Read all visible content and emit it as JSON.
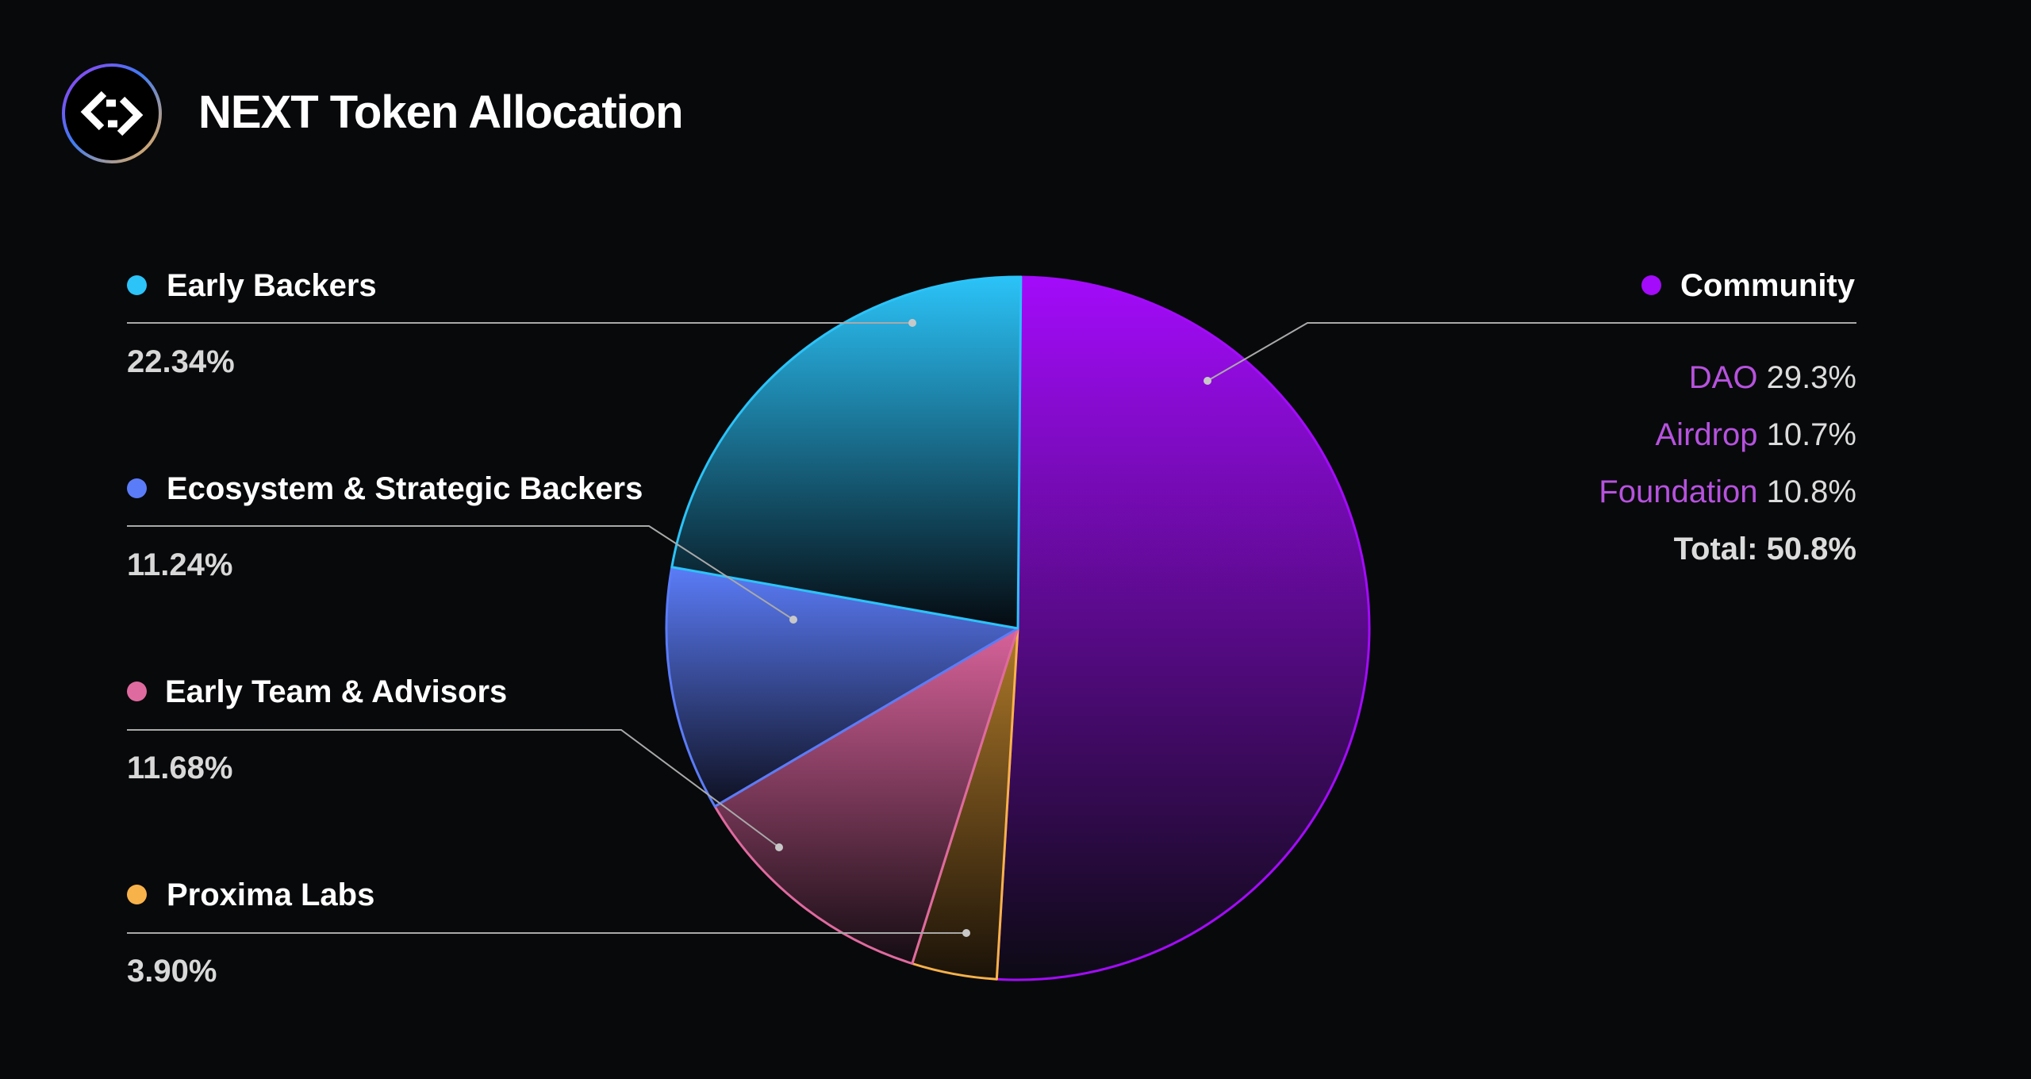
{
  "header": {
    "title": "NEXT Token Allocation"
  },
  "colors": {
    "background": "#08090b",
    "early_backers": "#2bc3f8",
    "ecosystem": "#5b7cf8",
    "team": "#df6a9f",
    "proxima": "#f8b24a",
    "community": "#a30bfa",
    "subitem": "#b652de"
  },
  "chart_data": {
    "type": "pie",
    "title": "NEXT Token Allocation",
    "slices": [
      {
        "label": "Community",
        "value": 50.8,
        "color": "#a30bfa"
      },
      {
        "label": "Proxima Labs",
        "value": 3.9,
        "display": "3.90%",
        "color": "#f8b24a"
      },
      {
        "label": "Early Team & Advisors",
        "value": 11.68,
        "display": "11.68%",
        "color": "#df6a9f"
      },
      {
        "label": "Ecosystem & Strategic Backers",
        "value": 11.24,
        "display": "11.24%",
        "color": "#5b7cf8"
      },
      {
        "label": "Early Backers",
        "value": 22.34,
        "display": "22.34%",
        "color": "#2bc3f8"
      }
    ],
    "community_breakdown": [
      {
        "name": "DAO",
        "value": "29.3%"
      },
      {
        "name": "Airdrop",
        "value": "10.7%"
      },
      {
        "name": "Foundation",
        "value": "10.8%"
      }
    ],
    "community_total": "Total: 50.8%"
  },
  "legend": {
    "early_backers": {
      "label": "Early Backers",
      "value": "22.34%"
    },
    "ecosystem": {
      "label": "Ecosystem & Strategic Backers",
      "value": "11.24%"
    },
    "team": {
      "label": "Early Team & Advisors",
      "value": "11.68%"
    },
    "proxima": {
      "label": "Proxima Labs",
      "value": "3.90%"
    },
    "community": {
      "label": "Community"
    }
  }
}
